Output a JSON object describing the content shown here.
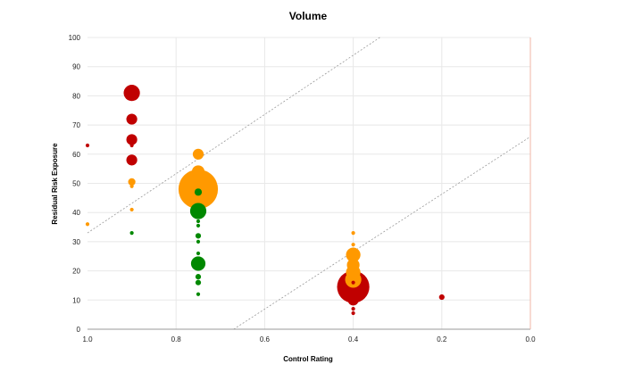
{
  "chart_data": {
    "type": "scatter",
    "title": "Volume",
    "xlabel": "Control Rating",
    "ylabel": "Residual Risk Exposure",
    "xlim": [
      1.0,
      0.0
    ],
    "ylim": [
      0,
      100
    ],
    "x_ticks": [
      "1.0",
      "0.8",
      "0.6",
      "0.4",
      "0.2",
      "0.0"
    ],
    "y_ticks": [
      "0",
      "10",
      "20",
      "30",
      "40",
      "50",
      "60",
      "70",
      "80",
      "90",
      "100"
    ],
    "grid": true,
    "legend": "none",
    "colors": {
      "red": "#c00000",
      "orange": "#ff9900",
      "green": "#008800"
    },
    "reference_lines": [
      {
        "from": [
          1.0,
          33
        ],
        "to": [
          0.34,
          100
        ]
      },
      {
        "from": [
          0.67,
          0
        ],
        "to": [
          0.0,
          66
        ]
      }
    ],
    "points": [
      {
        "x": 1.0,
        "y": 63,
        "color": "red",
        "size": 1
      },
      {
        "x": 1.0,
        "y": 36,
        "color": "orange",
        "size": 1
      },
      {
        "x": 0.9,
        "y": 81,
        "color": "red",
        "size": 8
      },
      {
        "x": 0.9,
        "y": 72,
        "color": "red",
        "size": 5
      },
      {
        "x": 0.9,
        "y": 65,
        "color": "red",
        "size": 5
      },
      {
        "x": 0.9,
        "y": 63,
        "color": "red",
        "size": 1
      },
      {
        "x": 0.9,
        "y": 58,
        "color": "red",
        "size": 5
      },
      {
        "x": 0.9,
        "y": 50.5,
        "color": "orange",
        "size": 3
      },
      {
        "x": 0.9,
        "y": 49,
        "color": "orange",
        "size": 1
      },
      {
        "x": 0.9,
        "y": 41,
        "color": "orange",
        "size": 1
      },
      {
        "x": 0.9,
        "y": 33,
        "color": "green",
        "size": 1
      },
      {
        "x": 0.75,
        "y": 60,
        "color": "orange",
        "size": 5
      },
      {
        "x": 0.75,
        "y": 54,
        "color": "orange",
        "size": 6
      },
      {
        "x": 0.75,
        "y": 48,
        "color": "orange",
        "size": 21
      },
      {
        "x": 0.75,
        "y": 47,
        "color": "green",
        "size": 3
      },
      {
        "x": 0.75,
        "y": 40.5,
        "color": "green",
        "size": 8
      },
      {
        "x": 0.75,
        "y": 37,
        "color": "green",
        "size": 1
      },
      {
        "x": 0.75,
        "y": 35.5,
        "color": "green",
        "size": 1
      },
      {
        "x": 0.75,
        "y": 32,
        "color": "green",
        "size": 2
      },
      {
        "x": 0.75,
        "y": 30,
        "color": "green",
        "size": 1
      },
      {
        "x": 0.75,
        "y": 26,
        "color": "green",
        "size": 1
      },
      {
        "x": 0.75,
        "y": 22.5,
        "color": "green",
        "size": 7
      },
      {
        "x": 0.75,
        "y": 18,
        "color": "green",
        "size": 2
      },
      {
        "x": 0.75,
        "y": 16,
        "color": "green",
        "size": 2
      },
      {
        "x": 0.75,
        "y": 12,
        "color": "green",
        "size": 1
      },
      {
        "x": 0.4,
        "y": 33,
        "color": "orange",
        "size": 1
      },
      {
        "x": 0.4,
        "y": 29,
        "color": "orange",
        "size": 1
      },
      {
        "x": 0.4,
        "y": 25.5,
        "color": "orange",
        "size": 7
      },
      {
        "x": 0.4,
        "y": 22,
        "color": "orange",
        "size": 6
      },
      {
        "x": 0.4,
        "y": 19.5,
        "color": "orange",
        "size": 7
      },
      {
        "x": 0.4,
        "y": 17,
        "color": "orange",
        "size": 8
      },
      {
        "x": 0.4,
        "y": 16,
        "color": "red",
        "size": 1
      },
      {
        "x": 0.4,
        "y": 14.5,
        "color": "red",
        "size": 17
      },
      {
        "x": 0.4,
        "y": 10,
        "color": "red",
        "size": 5
      },
      {
        "x": 0.4,
        "y": 7,
        "color": "red",
        "size": 1
      },
      {
        "x": 0.4,
        "y": 5.5,
        "color": "red",
        "size": 1
      },
      {
        "x": 0.2,
        "y": 11,
        "color": "red",
        "size": 2
      }
    ]
  }
}
